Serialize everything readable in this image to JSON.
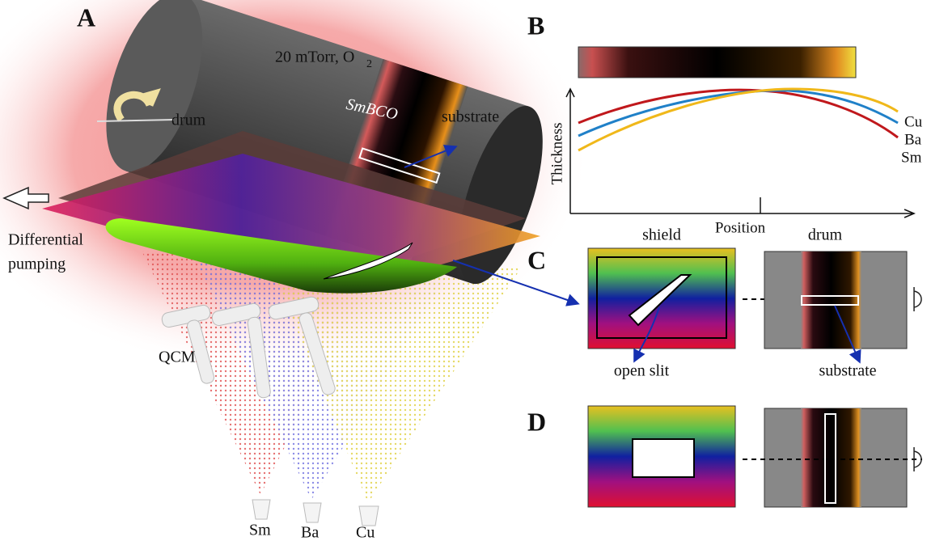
{
  "panels": {
    "a": {
      "label": "A",
      "pressure": {
        "text": "20 mTorr, O",
        "subscript": "2"
      },
      "film": "SmBCO",
      "drum": "drum",
      "substrate": "substrate",
      "pumping": [
        "Differential",
        "pumping"
      ],
      "qcm": "QCM",
      "sources": [
        "Sm",
        "Ba",
        "Cu"
      ]
    },
    "b": {
      "label": "B",
      "y_axis": "Thickness",
      "x_axis": "Position",
      "curves": [
        "Cu",
        "Ba",
        "Sm"
      ]
    },
    "c": {
      "label": "C",
      "shield": "shield",
      "drum": "drum",
      "slit": "open slit",
      "substrate": "substrate"
    },
    "d": {
      "label": "D"
    }
  }
}
